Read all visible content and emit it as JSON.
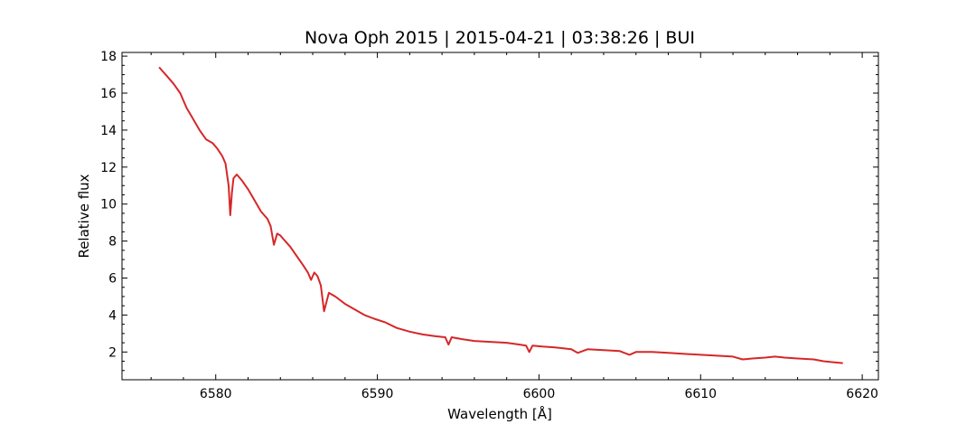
{
  "chart_data": {
    "type": "line",
    "title": "Nova Oph 2015 | 2015-04-21 | 03:38:26 | BUI",
    "xlabel": "Wavelength [Å]",
    "ylabel": "Relative flux",
    "xlim": [
      6574.2,
      6621.0
    ],
    "ylim": [
      0.5,
      18.2
    ],
    "xticks": [
      6580,
      6590,
      6600,
      6610,
      6620
    ],
    "yticks": [
      2,
      4,
      6,
      8,
      10,
      12,
      14,
      16,
      18
    ],
    "grid": false,
    "legend": "none",
    "series": [
      {
        "color": "#d62728",
        "x": [
          6576.5,
          6576.7,
          6577.0,
          6577.4,
          6577.8,
          6578.2,
          6578.6,
          6579.0,
          6579.4,
          6579.8,
          6580.1,
          6580.4,
          6580.6,
          6580.8,
          6580.9,
          6581.0,
          6581.1,
          6581.3,
          6581.6,
          6582.0,
          6582.4,
          6582.8,
          6583.2,
          6583.4,
          6583.5,
          6583.6,
          6583.8,
          6584.0,
          6584.2,
          6584.4,
          6584.6,
          6585.0,
          6585.4,
          6585.7,
          6585.9,
          6586.1,
          6586.3,
          6586.5,
          6586.7,
          6587.0,
          6587.4,
          6588.0,
          6588.6,
          6589.2,
          6589.8,
          6590.5,
          6591.2,
          6592.0,
          6592.8,
          6593.6,
          6594.2,
          6594.4,
          6594.6,
          6595.2,
          6596.0,
          6597.0,
          6598.0,
          6598.8,
          6599.2,
          6599.4,
          6599.6,
          6600.2,
          6601.0,
          6602.0,
          6602.4,
          6603.0,
          6604.0,
          6605.0,
          6605.6,
          6606.0,
          6607.0,
          6608.0,
          6609.0,
          6610.0,
          6611.0,
          6612.0,
          6612.6,
          6613.2,
          6614.0,
          6614.6,
          6615.2,
          6616.0,
          6617.0,
          6617.6,
          6618.2,
          6618.8
        ],
        "y": [
          17.4,
          17.2,
          16.9,
          16.5,
          16.0,
          15.2,
          14.6,
          14.0,
          13.5,
          13.3,
          13.0,
          12.6,
          12.2,
          11.0,
          9.4,
          10.6,
          11.4,
          11.6,
          11.3,
          10.8,
          10.2,
          9.6,
          9.2,
          8.8,
          8.3,
          7.8,
          8.4,
          8.3,
          8.1,
          7.9,
          7.7,
          7.2,
          6.7,
          6.3,
          5.9,
          6.3,
          6.1,
          5.6,
          4.2,
          5.2,
          5.0,
          4.6,
          4.3,
          4.0,
          3.8,
          3.6,
          3.3,
          3.1,
          2.95,
          2.85,
          2.8,
          2.4,
          2.8,
          2.7,
          2.6,
          2.55,
          2.5,
          2.4,
          2.35,
          2.0,
          2.35,
          2.3,
          2.25,
          2.15,
          1.95,
          2.15,
          2.1,
          2.05,
          1.85,
          2.0,
          2.0,
          1.95,
          1.9,
          1.85,
          1.8,
          1.75,
          1.6,
          1.65,
          1.7,
          1.75,
          1.7,
          1.65,
          1.6,
          1.5,
          1.45,
          1.4
        ]
      }
    ]
  }
}
